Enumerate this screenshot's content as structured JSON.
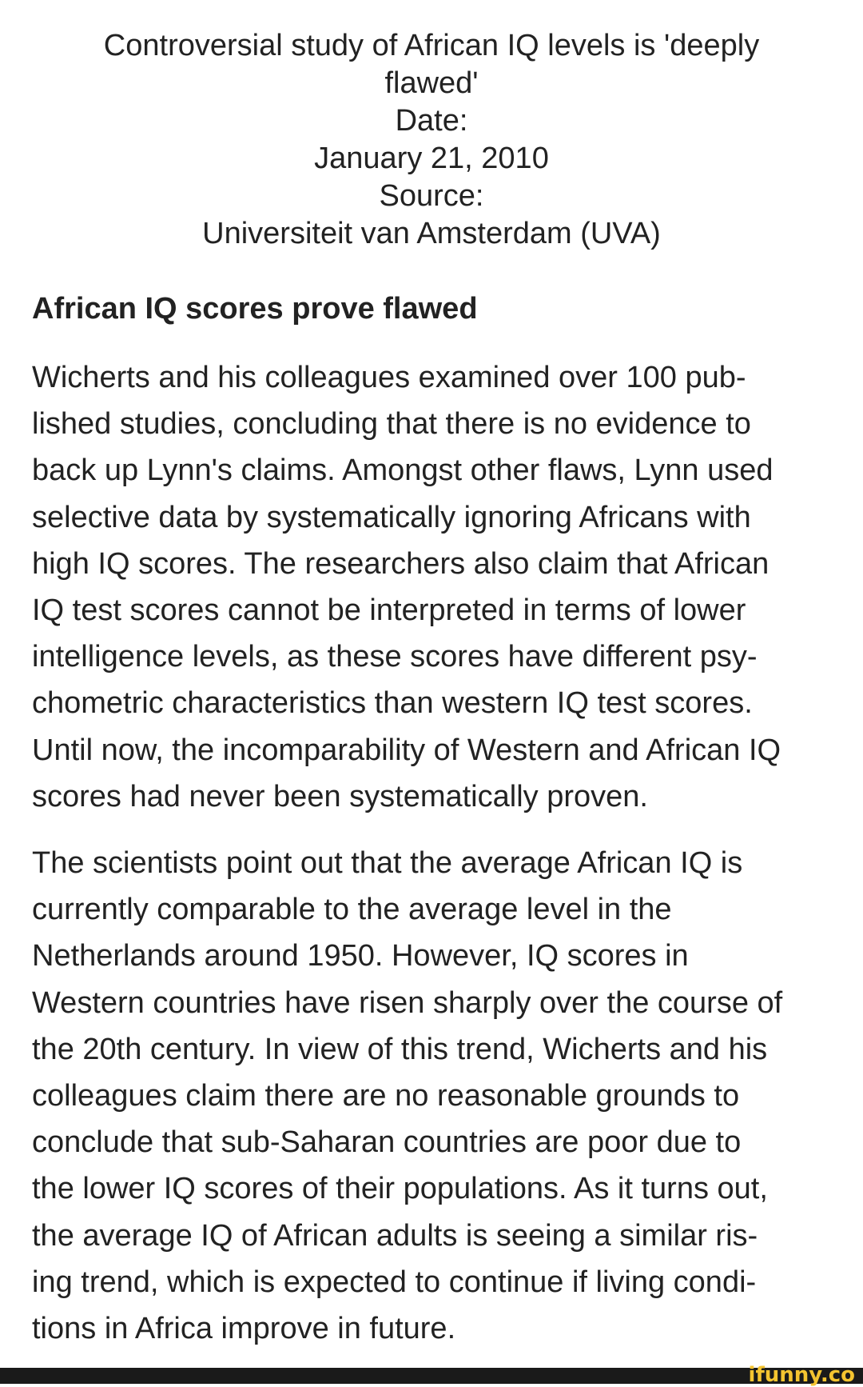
{
  "header": {
    "title_lines": [
      "Controversial study of African IQ levels is 'deeply",
      "flawed'"
    ],
    "date_label": "Date:",
    "date": "January 21, 2010",
    "source_label": "Source:",
    "source": "Universiteit van Amsterdam (UVA)"
  },
  "article": {
    "subheading": "African IQ scores prove flawed",
    "paragraph1": [
      "Wicherts and his colleagues examined over 100 pub-",
      "lished studies, concluding that there is no evidence to",
      "back up Lynn's claims. Amongst other flaws, Lynn used",
      "selective data by systematically ignoring Africans with",
      "high IQ scores. The researchers also claim that African",
      "IQ test scores cannot be interpreted in terms of lower",
      "intelligence levels, as these scores have different psy-",
      "chometric characteristics than western IQ test scores.",
      "Until now, the incomparability of Western and African IQ",
      "scores had never been systematically proven."
    ],
    "paragraph2": [
      "The scientists point out that the average African IQ is",
      "currently comparable to the average level in the",
      "Netherlands around 1950. However, IQ scores in",
      "Western countries have risen sharply over the course of",
      "the 20th century. In view of this trend, Wicherts and his",
      "colleagues claim there are no reasonable grounds to",
      "conclude that sub-Saharan countries are poor due to",
      "the lower IQ scores of their populations. As it turns out,",
      "the average IQ of African adults is seeing a similar ris-",
      "ing trend, which is expected to continue if living condi-",
      "tions in Africa improve in future."
    ]
  },
  "watermark": {
    "text": "ifunny.co",
    "color": "#f4c430"
  }
}
